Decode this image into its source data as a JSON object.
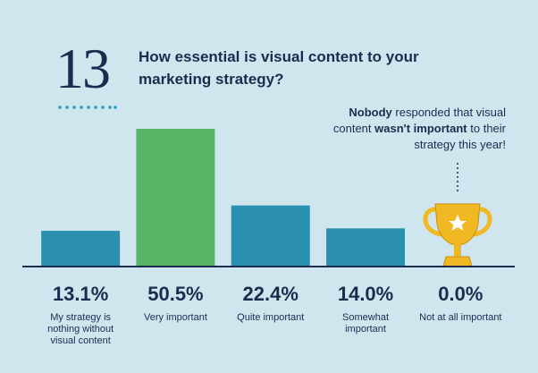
{
  "chart_data": {
    "type": "bar",
    "badge": "13",
    "title": "How essential is visual content to your marketing strategy?",
    "annotation": [
      {
        "text": "Nobody",
        "bold": true
      },
      {
        "text": " responded that visual content ",
        "bold": false
      },
      {
        "text": "wasn't important",
        "bold": true
      },
      {
        "text": " to their strategy this year!",
        "bold": false
      }
    ],
    "categories": [
      "My strategy is nothing without visual content",
      "Very important",
      "Quite important",
      "Somewhat important",
      "Not at all important"
    ],
    "values": [
      13.1,
      50.5,
      22.4,
      14.0,
      0.0
    ],
    "value_labels": [
      "13.1%",
      "50.5%",
      "22.4%",
      "14.0%",
      "0.0%"
    ],
    "colors": [
      "#2b8fb0",
      "#56b566",
      "#2b8fb0",
      "#2b8fb0",
      "#2b8fb0"
    ]
  }
}
